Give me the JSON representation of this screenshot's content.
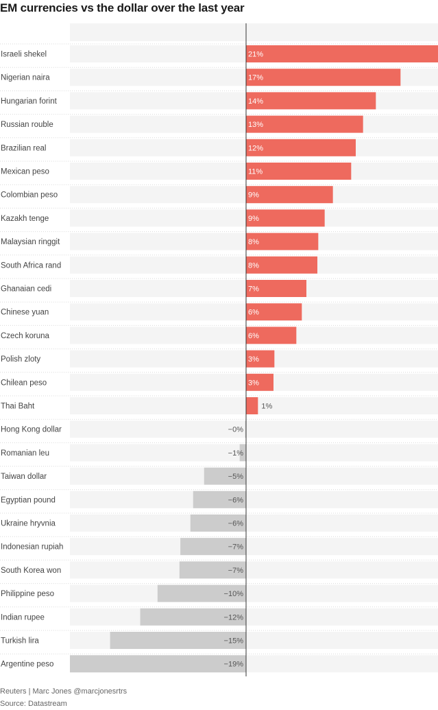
{
  "chart_data": {
    "type": "bar",
    "orientation": "horizontal",
    "title": "EM currencies vs the dollar over the last year",
    "categories": [
      "Israeli shekel",
      "Nigerian naira",
      "Hungarian forint",
      "Russian rouble",
      "Brazilian real",
      "Mexican peso",
      "Colombian peso",
      "Kazakh tenge",
      "Malaysian ringgit",
      "South Africa rand",
      "Ghanaian cedi",
      "Chinese yuan",
      "Czech koruna",
      "Polish zloty",
      "Chilean peso",
      "Thai Baht",
      "Hong Kong dollar",
      "Romanian leu",
      "Taiwan dollar",
      "Egyptian pound",
      "Ukraine hryvnia",
      "Indonesian rupiah",
      "South Korea won",
      "Philippine peso",
      "Indian rupee",
      "Turkish lira",
      "Argentine peso"
    ],
    "values": [
      21,
      16.9,
      14.2,
      12.8,
      12.0,
      11.5,
      9.5,
      8.6,
      7.9,
      7.8,
      6.6,
      6.1,
      5.5,
      3.1,
      3.0,
      1.3,
      -0.1,
      -0.7,
      -4.6,
      -5.8,
      -6.1,
      -7.2,
      -7.3,
      -9.7,
      -11.6,
      -14.9,
      -19.3
    ],
    "labels": [
      "21%",
      "17%",
      "14%",
      "13%",
      "12%",
      "11%",
      "9%",
      "9%",
      "8%",
      "8%",
      "7%",
      "6%",
      "6%",
      "3%",
      "3%",
      "1%",
      "−0%",
      "−1%",
      "−5%",
      "−6%",
      "−6%",
      "−7%",
      "−7%",
      "−10%",
      "−12%",
      "−15%",
      "−19%"
    ],
    "xlim": [
      -19.3,
      21
    ],
    "grid": false,
    "legend": "none",
    "colors": {
      "positive": "#ee6a5e",
      "negative": "#cccccc",
      "track": "#f4f4f4",
      "axis": "#333333",
      "label_on_bar_positive": "#ffffff",
      "label_dark": "#555555",
      "divider": "#d9d9d9"
    }
  },
  "footer": {
    "credit": "Reuters | Marc Jones @marcjonesrtrs",
    "source": "Source: Datastream"
  }
}
